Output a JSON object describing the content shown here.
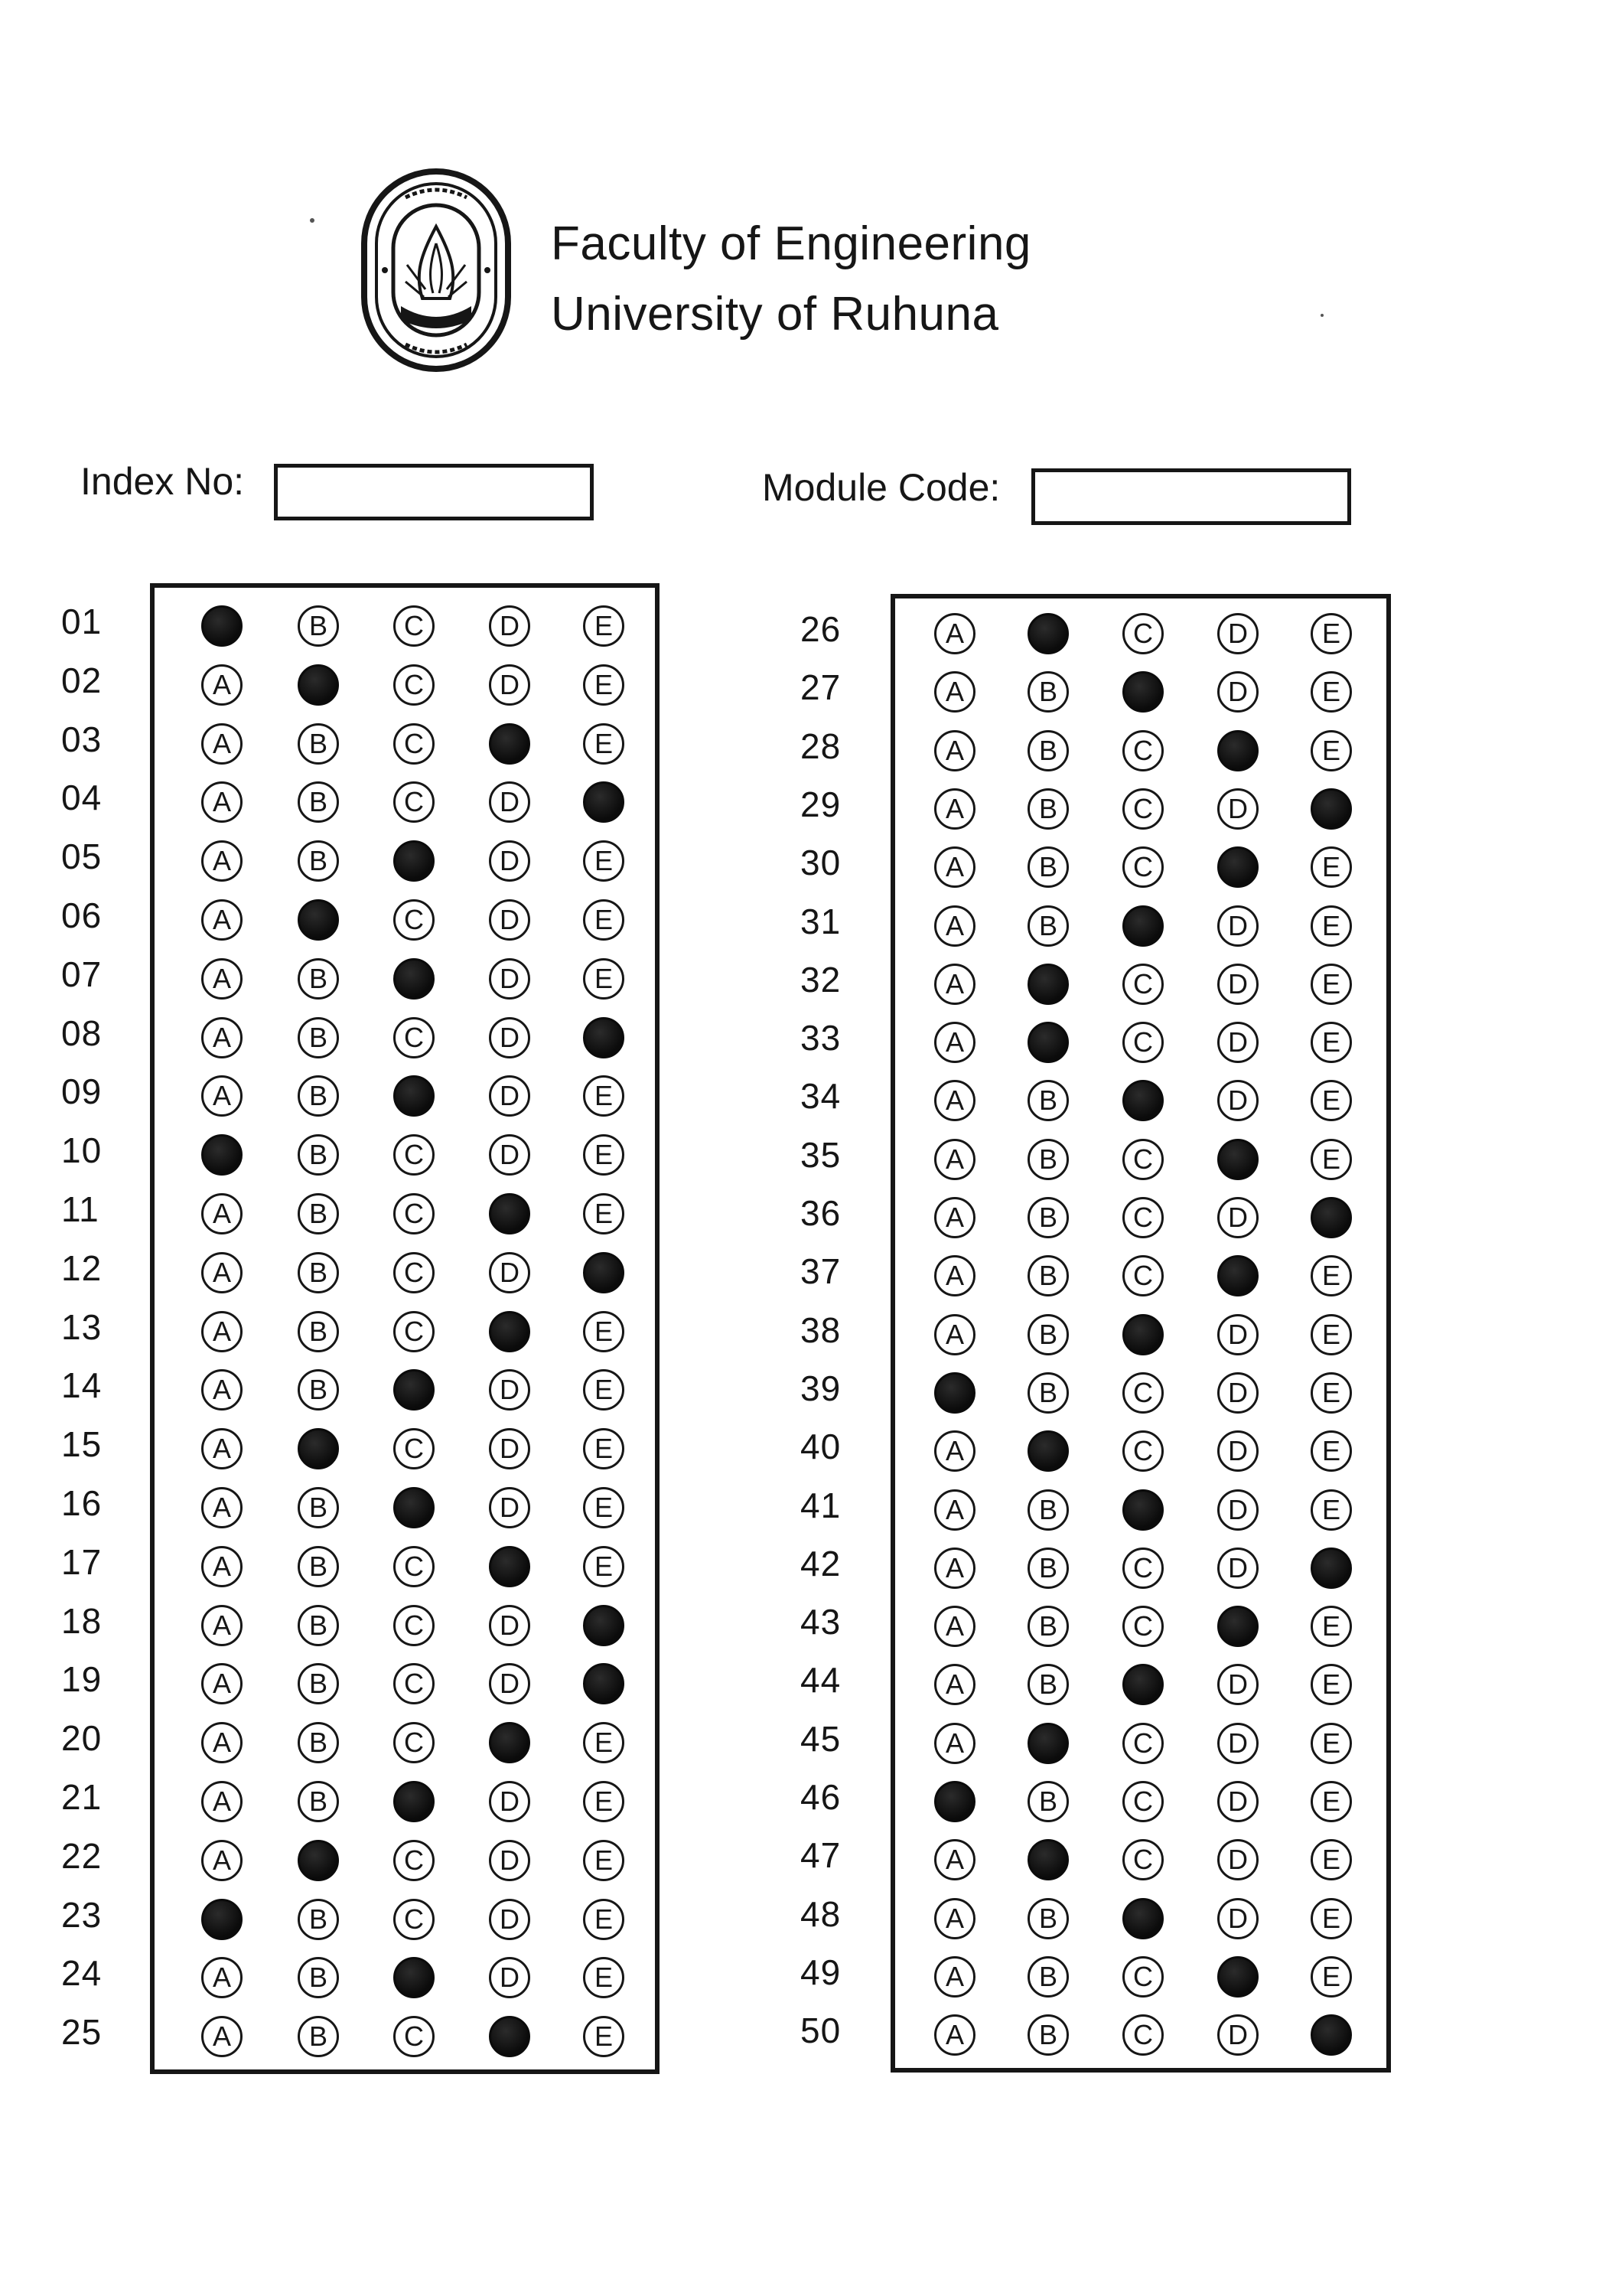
{
  "header": {
    "line1": "Faculty of Engineering",
    "line2": "University of Ruhuna",
    "logo_icon": "university-crest-icon"
  },
  "fields": {
    "index_label": "Index No:",
    "index_value": "",
    "module_label": "Module Code:",
    "module_value": ""
  },
  "options": [
    "A",
    "B",
    "C",
    "D",
    "E"
  ],
  "left_column": {
    "questions": [
      {
        "num": "01",
        "marked": "A"
      },
      {
        "num": "02",
        "marked": "B"
      },
      {
        "num": "03",
        "marked": "D"
      },
      {
        "num": "04",
        "marked": "E"
      },
      {
        "num": "05",
        "marked": "C"
      },
      {
        "num": "06",
        "marked": "B"
      },
      {
        "num": "07",
        "marked": "C"
      },
      {
        "num": "08",
        "marked": "E"
      },
      {
        "num": "09",
        "marked": "C"
      },
      {
        "num": "10",
        "marked": "A"
      },
      {
        "num": "11",
        "marked": "D"
      },
      {
        "num": "12",
        "marked": "E"
      },
      {
        "num": "13",
        "marked": "D"
      },
      {
        "num": "14",
        "marked": "C"
      },
      {
        "num": "15",
        "marked": "B"
      },
      {
        "num": "16",
        "marked": "C"
      },
      {
        "num": "17",
        "marked": "D"
      },
      {
        "num": "18",
        "marked": "E"
      },
      {
        "num": "19",
        "marked": "E"
      },
      {
        "num": "20",
        "marked": "D"
      },
      {
        "num": "21",
        "marked": "C"
      },
      {
        "num": "22",
        "marked": "B"
      },
      {
        "num": "23",
        "marked": "A"
      },
      {
        "num": "24",
        "marked": "C"
      },
      {
        "num": "25",
        "marked": "D"
      }
    ]
  },
  "right_column": {
    "questions": [
      {
        "num": "26",
        "marked": "B"
      },
      {
        "num": "27",
        "marked": "C"
      },
      {
        "num": "28",
        "marked": "D"
      },
      {
        "num": "29",
        "marked": "E"
      },
      {
        "num": "30",
        "marked": "D"
      },
      {
        "num": "31",
        "marked": "C"
      },
      {
        "num": "32",
        "marked": "B"
      },
      {
        "num": "33",
        "marked": "B"
      },
      {
        "num": "34",
        "marked": "C"
      },
      {
        "num": "35",
        "marked": "D"
      },
      {
        "num": "36",
        "marked": "E"
      },
      {
        "num": "37",
        "marked": "D"
      },
      {
        "num": "38",
        "marked": "C"
      },
      {
        "num": "39",
        "marked": "A"
      },
      {
        "num": "40",
        "marked": "B"
      },
      {
        "num": "41",
        "marked": "C"
      },
      {
        "num": "42",
        "marked": "E"
      },
      {
        "num": "43",
        "marked": "D"
      },
      {
        "num": "44",
        "marked": "C"
      },
      {
        "num": "45",
        "marked": "B"
      },
      {
        "num": "46",
        "marked": "A"
      },
      {
        "num": "47",
        "marked": "B"
      },
      {
        "num": "48",
        "marked": "C"
      },
      {
        "num": "49",
        "marked": "D"
      },
      {
        "num": "50",
        "marked": "E"
      }
    ]
  }
}
